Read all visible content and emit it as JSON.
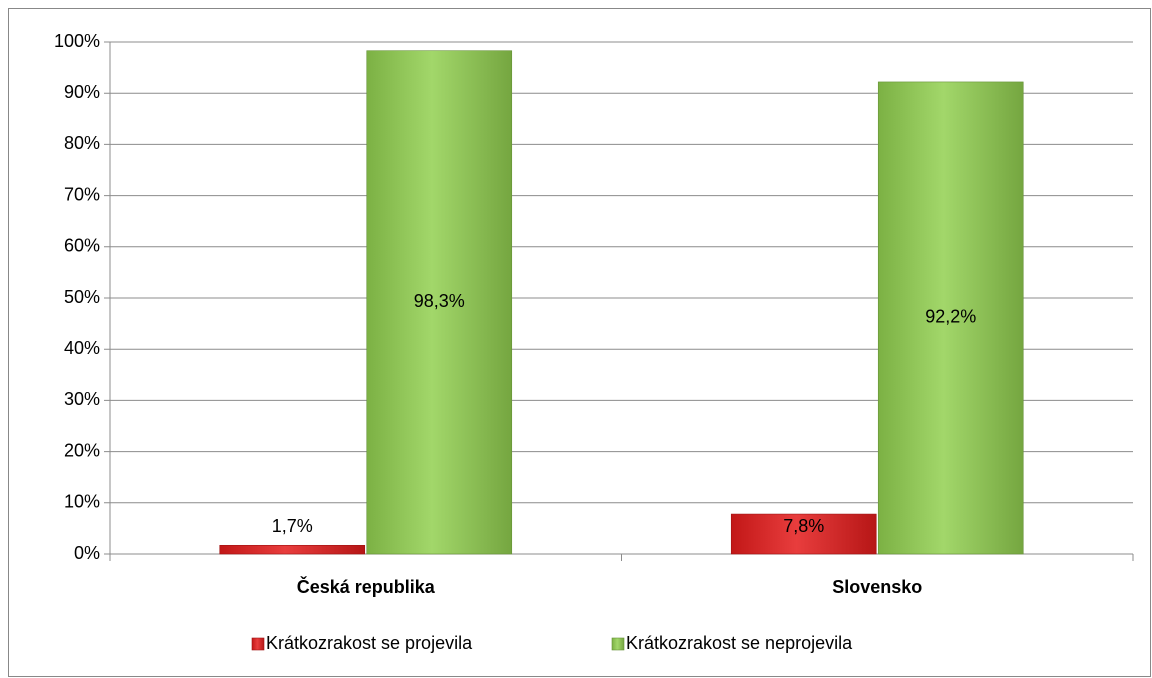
{
  "chart_data": {
    "type": "bar",
    "categories": [
      "Česká republika",
      "Slovensko"
    ],
    "series": [
      {
        "name": "Krátkozrakost se projevila",
        "color": "#e41b1b",
        "values": [
          1.7,
          7.8
        ],
        "value_labels": [
          "1,7%",
          "7,8%"
        ]
      },
      {
        "name": "Krátkozrakost se neprojevila",
        "color": "#92d050",
        "values": [
          98.3,
          92.2
        ],
        "value_labels": [
          "98,3%",
          "92,2%"
        ]
      }
    ],
    "ylim": [
      0,
      100
    ],
    "yticks": [
      {
        "value": 0,
        "label": "0%"
      },
      {
        "value": 10,
        "label": "10%"
      },
      {
        "value": 20,
        "label": "20%"
      },
      {
        "value": 30,
        "label": "30%"
      },
      {
        "value": 40,
        "label": "40%"
      },
      {
        "value": 50,
        "label": "50%"
      },
      {
        "value": 60,
        "label": "60%"
      },
      {
        "value": 70,
        "label": "70%"
      },
      {
        "value": 80,
        "label": "80%"
      },
      {
        "value": 90,
        "label": "90%"
      },
      {
        "value": 100,
        "label": "100%"
      }
    ],
    "grid": true,
    "legend": "bottom"
  }
}
